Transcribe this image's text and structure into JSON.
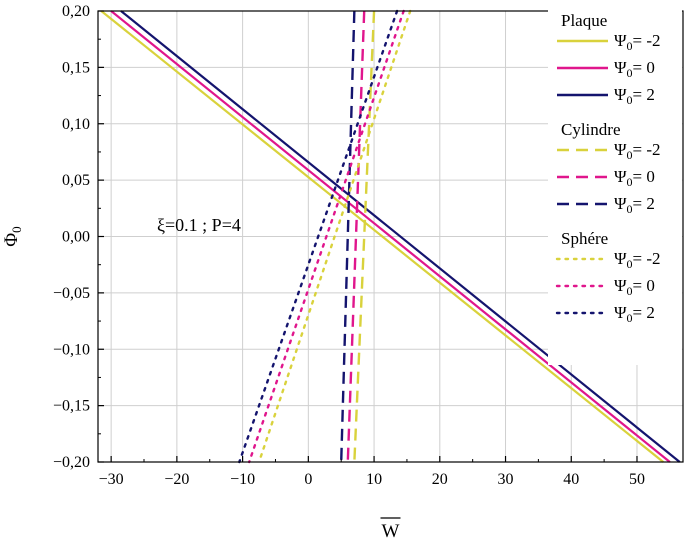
{
  "chart_data": {
    "type": "line",
    "xlabel": "W",
    "xlabel_overline": true,
    "ylabel": "Φ",
    "ylabel_subscript": "0",
    "xlim": [
      -32,
      57
    ],
    "ylim": [
      -0.2,
      0.2
    ],
    "x_ticks": [
      -30,
      -20,
      -10,
      0,
      10,
      20,
      30,
      40,
      50
    ],
    "x_tick_labels": [
      "−30",
      "−20",
      "−10",
      "0",
      "10",
      "20",
      "30",
      "40",
      "50"
    ],
    "y_ticks": [
      0.2,
      0.15,
      0.1,
      0.05,
      0.0,
      -0.05,
      -0.1,
      -0.15,
      -0.2
    ],
    "y_tick_labels": [
      "0,20",
      "0,15",
      "0,10",
      "0,05",
      "0,00",
      "−0,05",
      "−0,10",
      "−0,15",
      "−0,20"
    ],
    "grid": true,
    "annotation": "ξ=0.1 ; P=4",
    "colors": {
      "yellow": "#d9d23c",
      "magenta": "#e0168c",
      "navy": "#14146e"
    },
    "legend_groups": [
      {
        "title": "Plaque",
        "style": "solid"
      },
      {
        "title": "Cylindre",
        "style": "dashed"
      },
      {
        "title": "Sphére",
        "style": "dotted"
      }
    ],
    "series": [
      {
        "group": "Plaque",
        "style": "solid",
        "color": "#d9d23c",
        "psi_label": "= -2",
        "points": [
          [
            -31.5,
            0.2
          ],
          [
            54.0,
            -0.2
          ]
        ]
      },
      {
        "group": "Plaque",
        "style": "solid",
        "color": "#e0168c",
        "psi_label": "= 0",
        "points": [
          [
            -30.0,
            0.2
          ],
          [
            55.0,
            -0.2
          ]
        ]
      },
      {
        "group": "Plaque",
        "style": "solid",
        "color": "#14146e",
        "psi_label": "= 2",
        "points": [
          [
            -28.5,
            0.2
          ],
          [
            56.5,
            -0.2
          ]
        ]
      },
      {
        "group": "Cylindre",
        "style": "dashed",
        "color": "#d9d23c",
        "psi_label": "= -2",
        "points": [
          [
            10.0,
            0.2
          ],
          [
            7.0,
            -0.2
          ]
        ]
      },
      {
        "group": "Cylindre",
        "style": "dashed",
        "color": "#e0168c",
        "psi_label": "= 0",
        "points": [
          [
            8.5,
            0.2
          ],
          [
            6.0,
            -0.2
          ]
        ]
      },
      {
        "group": "Cylindre",
        "style": "dashed",
        "color": "#14146e",
        "psi_label": "= 2",
        "points": [
          [
            7.0,
            0.2
          ],
          [
            5.0,
            -0.2
          ]
        ]
      },
      {
        "group": "Sphére",
        "style": "dotted",
        "color": "#d9d23c",
        "psi_label": "= -2",
        "points": [
          [
            15.5,
            0.2
          ],
          [
            -7.5,
            -0.2
          ]
        ]
      },
      {
        "group": "Sphére",
        "style": "dotted",
        "color": "#e0168c",
        "psi_label": "= 0",
        "points": [
          [
            14.5,
            0.2
          ],
          [
            -9.0,
            -0.2
          ]
        ]
      },
      {
        "group": "Sphére",
        "style": "dotted",
        "color": "#14146e",
        "psi_label": "= 2",
        "points": [
          [
            13.5,
            0.2
          ],
          [
            -10.5,
            -0.2
          ]
        ]
      }
    ],
    "legend_symbol": "Ψ",
    "legend_symbol_subscript": "0"
  }
}
